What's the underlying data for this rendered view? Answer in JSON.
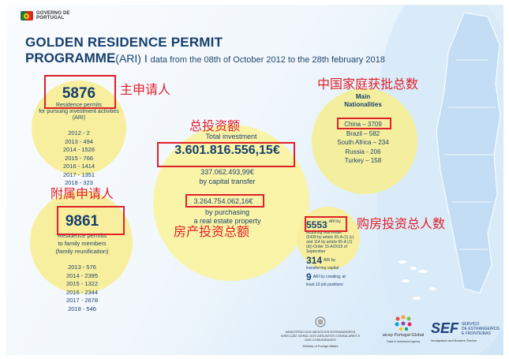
{
  "header": {
    "logo_text": "GOVERNO DE\nPORTUGAL",
    "title_line1": "GOLDEN RESIDENCE PERMIT",
    "title_line2": "PROGRAMME",
    "title_acronym": "(ARI)",
    "title_sep": " I ",
    "subtitle": "data from the 08th of October 2012 to the 28th february 2018"
  },
  "residence_permits": {
    "total": "5876",
    "label": "Residence permits",
    "label2": "for pursuing investment activities",
    "label3": "(ARI)",
    "years": [
      "2012 - 2",
      "2013 - 494",
      "2014 - 1526",
      "2015 - 766",
      "2016 - 1414",
      "2017 - 1351",
      "2018 - 323"
    ]
  },
  "family_members": {
    "total": "9861",
    "label": "Residence permits",
    "label2": "to family members",
    "label3": "(family reunification)",
    "years": [
      "2013 - 576",
      "2014 - 2395",
      "2015 - 1322",
      "2016 - 2344",
      "2017 - 2678",
      "2018 - 546"
    ]
  },
  "investment": {
    "label": "Total investment",
    "total": "3.601.816.556,15€",
    "capital_value": "337.062.493,99€",
    "capital_label": "by capital transfer",
    "property_value": "3.264.754.062,16€",
    "property_label": "by purchasing",
    "property_label2": "a real estate property"
  },
  "nationalities": {
    "title_line1": "Main",
    "title_line2": "Nationalities",
    "items": [
      "China – 3709",
      "Brazil – 582",
      "South Africa – 234",
      "Russia - 206",
      "Turkey – 158"
    ]
  },
  "criteria": {
    "acquire_value": "5553",
    "acquire_text": [
      "ARI by",
      "acquiring real estate",
      "(5439 by article 65-A (1) (c)",
      "and 114 by article 65-A (1)",
      "(d)) Order 15-A/2015 of",
      "September"
    ],
    "capital_value": "314",
    "capital_text": [
      "ARI by",
      "transferring capital"
    ],
    "jobs_value": "9",
    "jobs_text": [
      "ARI by creating, at",
      "least,10 job positions"
    ]
  },
  "annotations": {
    "main_applicants": "主申请人",
    "family_approved": "中国家庭获批总数",
    "total_investment": "总投资额",
    "dependents": "附属申请人",
    "property_total": "房产投资总额",
    "property_buyers": "购房投资总人数"
  },
  "footer": {
    "mne_line1": "MINISTÉRIO DOS NEGÓCIOS ESTRANGEIROS",
    "mne_line2": "DIRECÇÃO GERAL DOS ASSUNTOS CONSULARES E",
    "mne_line3": "DAS COMUNIDADES",
    "mne_line4": "Ministry of Foreign Affairs",
    "aicep_name": "aicep Portugal Global",
    "aicep_sub": "Trade & Investment Agency",
    "sef_name": "SEF",
    "sef_line1": "SERVIÇO",
    "sef_line2": "DE ESTRANGEIROS",
    "sef_line3": "E FRONTEIRAS",
    "sef_sub": "Immigration and Borders Service"
  },
  "colors": {
    "title": "#17406d",
    "circle": "#f7ef9d",
    "annotation": "#e0202a"
  }
}
